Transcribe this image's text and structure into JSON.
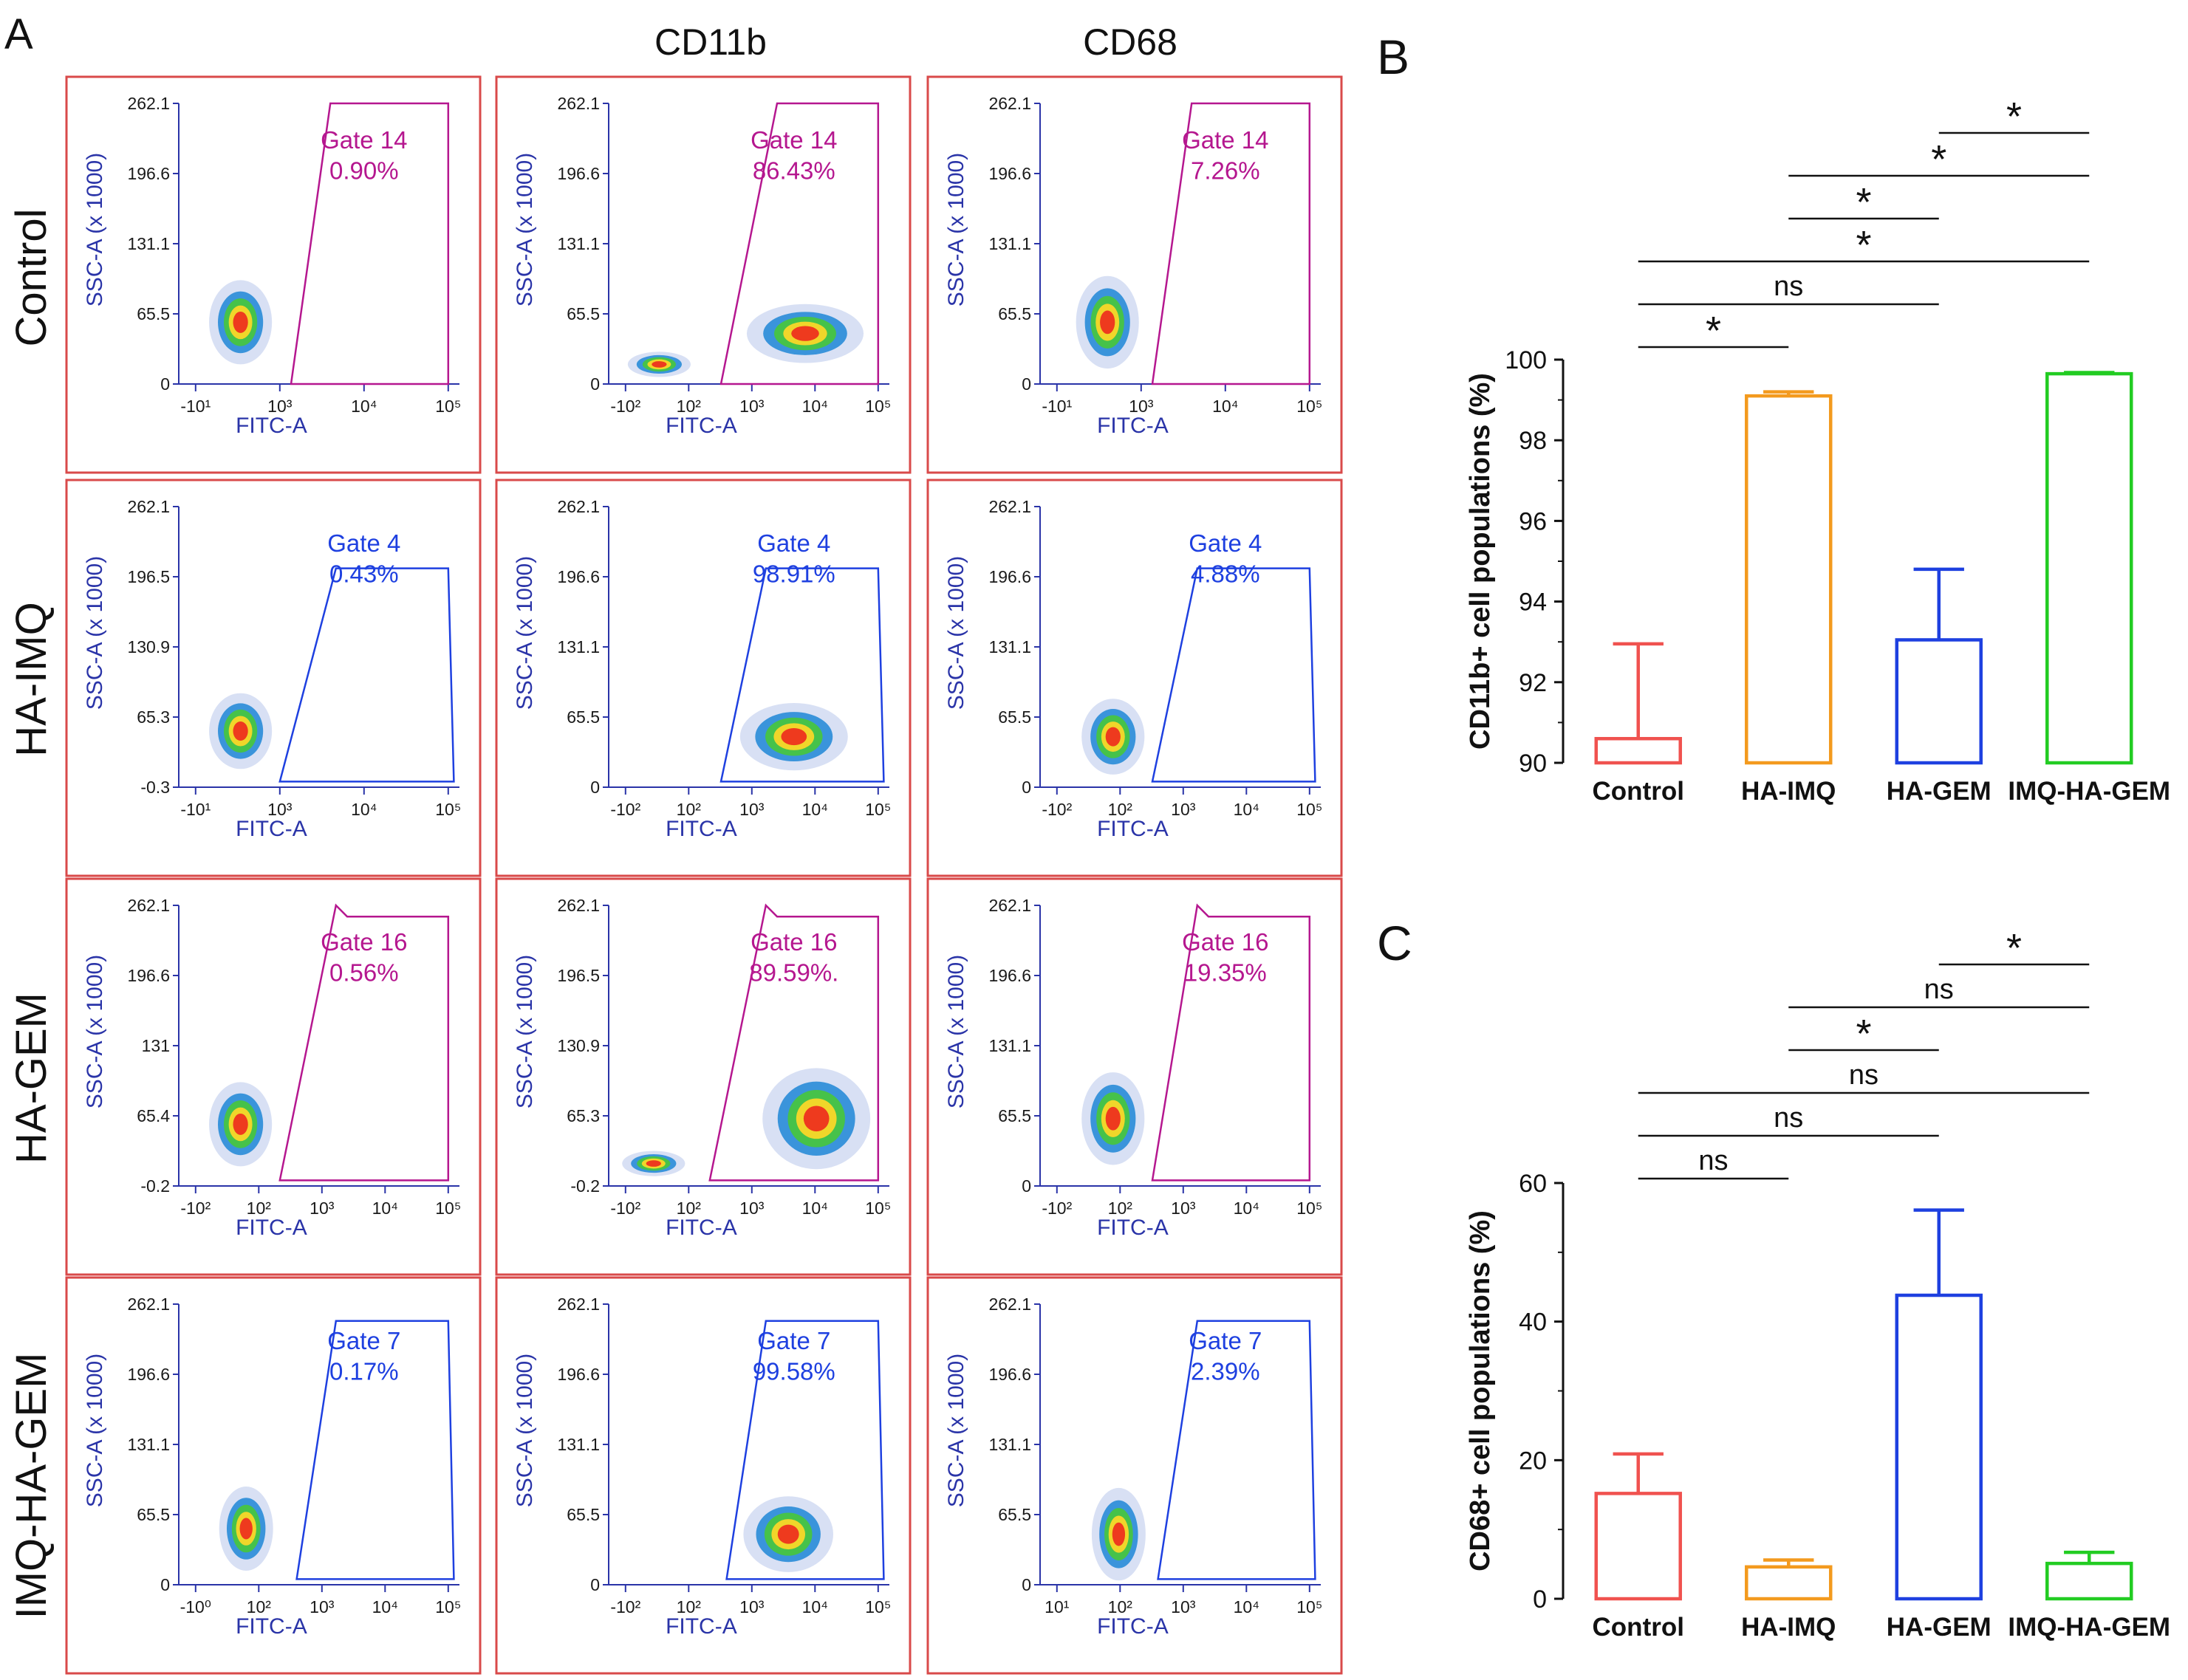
{
  "panel_labels": {
    "a": "A",
    "b": "B",
    "c": "C"
  },
  "column_headers": [
    "CD11b",
    "CD68"
  ],
  "row_labels": [
    "Control",
    "HA-IMQ",
    "HA-GEM",
    "IMQ-HA-GEM"
  ],
  "flow": {
    "x_label": "FITC-A",
    "y_label": "SSC-A (x 1000)",
    "rows": [
      {
        "gate_color": "#b5178f",
        "y_ticks": [
          [
            "262.1",
            "196.6",
            "131.1",
            "65.5",
            "0"
          ],
          [
            "262.1",
            "196.6",
            "131.1",
            "65.5",
            "0"
          ],
          [
            "262.1",
            "196.6",
            "131.1",
            "65.5",
            "0"
          ]
        ],
        "x_ticks": [
          [
            "-10¹",
            "10³",
            "10⁴",
            "10⁵"
          ],
          [
            "-10²",
            "10²",
            "10³",
            "10⁴",
            "10⁵"
          ],
          [
            "-10¹",
            "10³",
            "10⁴",
            "10⁵"
          ]
        ],
        "plots": [
          {
            "gate": "Gate 14",
            "pct": "0.90%"
          },
          {
            "gate": "Gate 14",
            "pct": "86.43%"
          },
          {
            "gate": "Gate 14",
            "pct": "7.26%"
          }
        ]
      },
      {
        "gate_color": "#1e40e0",
        "y_ticks": [
          [
            "262.1",
            "196.5",
            "130.9",
            "65.3",
            "-0.3"
          ],
          [
            "262.1",
            "196.6",
            "131.1",
            "65.5",
            "0"
          ],
          [
            "262.1",
            "196.6",
            "131.1",
            "65.5",
            "0"
          ]
        ],
        "x_ticks": [
          [
            "-10¹",
            "10³",
            "10⁴",
            "10⁵"
          ],
          [
            "-10²",
            "10²",
            "10³",
            "10⁴",
            "10⁵"
          ],
          [
            "-10²",
            "10²",
            "10³",
            "10⁴",
            "10⁵"
          ]
        ],
        "plots": [
          {
            "gate": "Gate 4",
            "pct": "0.43%"
          },
          {
            "gate": "Gate 4",
            "pct": "98.91%"
          },
          {
            "gate": "Gate 4",
            "pct": "4.88%"
          }
        ]
      },
      {
        "gate_color": "#b5178f",
        "y_ticks": [
          [
            "262.1",
            "196.6",
            "131",
            "65.4",
            "-0.2"
          ],
          [
            "262.1",
            "196.5",
            "130.9",
            "65.3",
            "-0.2"
          ],
          [
            "262.1",
            "196.6",
            "131.1",
            "65.5",
            "0"
          ]
        ],
        "x_ticks": [
          [
            "-10²",
            "10²",
            "10³",
            "10⁴",
            "10⁵"
          ],
          [
            "-10²",
            "10²",
            "10³",
            "10⁴",
            "10⁵"
          ],
          [
            "-10²",
            "10²",
            "10³",
            "10⁴",
            "10⁵"
          ]
        ],
        "plots": [
          {
            "gate": "Gate 16",
            "pct": "0.56%"
          },
          {
            "gate": "Gate 16",
            "pct": "89.59%."
          },
          {
            "gate": "Gate 16",
            "pct": "19.35%"
          }
        ]
      },
      {
        "gate_color": "#1e40e0",
        "y_ticks": [
          [
            "262.1",
            "196.6",
            "131.1",
            "65.5",
            "0"
          ],
          [
            "262.1",
            "196.6",
            "131.1",
            "65.5",
            "0"
          ],
          [
            "262.1",
            "196.6",
            "131.1",
            "65.5",
            "0"
          ]
        ],
        "x_ticks": [
          [
            "-10⁰",
            "10²",
            "10³",
            "10⁴",
            "10⁵"
          ],
          [
            "-10²",
            "10²",
            "10³",
            "10⁴",
            "10⁵"
          ],
          [
            "10¹",
            "10²",
            "10³",
            "10⁴",
            "10⁵"
          ]
        ],
        "plots": [
          {
            "gate": "Gate 7",
            "pct": "0.17%"
          },
          {
            "gate": "Gate 7",
            "pct": "99.58%"
          },
          {
            "gate": "Gate 7",
            "pct": "2.39%"
          }
        ]
      }
    ]
  },
  "chart_data": [
    {
      "type": "bar",
      "panel": "B",
      "ylabel": "CD11b+ cell populations (%)",
      "categories": [
        "Control",
        "HA-IMQ",
        "HA-GEM",
        "IMQ-HA-GEM"
      ],
      "values": [
        90.6,
        99.1,
        93.05,
        99.65
      ],
      "errors": [
        2.35,
        0.1,
        1.75,
        0.03
      ],
      "colors": [
        "#f0524f",
        "#f39a1e",
        "#1e40e0",
        "#22cc22"
      ],
      "ylim": [
        90,
        100
      ],
      "yticks": [
        90,
        92,
        94,
        96,
        98,
        100
      ],
      "comparisons": [
        {
          "from": 0,
          "to": 1,
          "label": "*"
        },
        {
          "from": 0,
          "to": 2,
          "label": "ns"
        },
        {
          "from": 0,
          "to": 3,
          "label": "*"
        },
        {
          "from": 1,
          "to": 2,
          "label": "*"
        },
        {
          "from": 1,
          "to": 3,
          "label": "*"
        },
        {
          "from": 2,
          "to": 3,
          "label": "*"
        }
      ]
    },
    {
      "type": "bar",
      "panel": "C",
      "ylabel": "CD68+ cell populations (%)",
      "categories": [
        "Control",
        "HA-IMQ",
        "HA-GEM",
        "IMQ-HA-GEM"
      ],
      "values": [
        15.2,
        4.6,
        43.8,
        5.1
      ],
      "errors": [
        5.7,
        1.0,
        12.3,
        1.6
      ],
      "colors": [
        "#f0524f",
        "#f39a1e",
        "#1e40e0",
        "#22cc22"
      ],
      "ylim": [
        0,
        60
      ],
      "yticks": [
        0,
        20,
        40,
        60
      ],
      "comparisons": [
        {
          "from": 0,
          "to": 1,
          "label": "ns"
        },
        {
          "from": 0,
          "to": 2,
          "label": "ns"
        },
        {
          "from": 0,
          "to": 3,
          "label": "ns"
        },
        {
          "from": 1,
          "to": 2,
          "label": "*"
        },
        {
          "from": 1,
          "to": 3,
          "label": "ns"
        },
        {
          "from": 2,
          "to": 3,
          "label": "*"
        }
      ]
    }
  ]
}
